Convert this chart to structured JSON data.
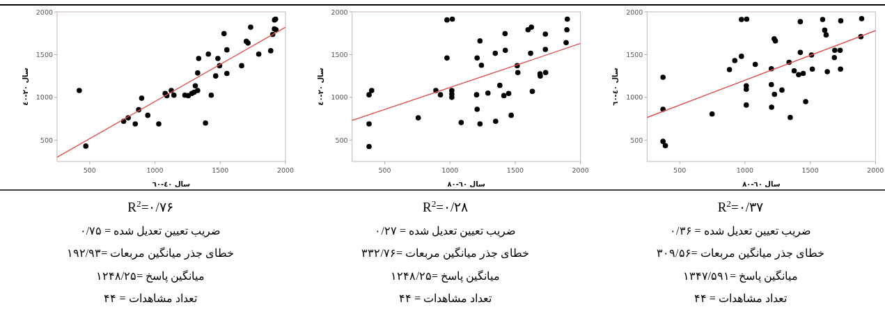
{
  "chart_data": [
    {
      "type": "scatter",
      "xlabel": "سال ٤٠-٦٠",
      "ylabel": "سال ٢٠-٤٠",
      "xlim": [
        250,
        2000
      ],
      "ylim": [
        250,
        2000
      ],
      "xticks": [
        500,
        1000,
        1500,
        2000
      ],
      "yticks": [
        500,
        1000,
        1500,
        2000
      ],
      "grid": false,
      "series": [
        {
          "marker": "circle",
          "color": "#000000",
          "x": [
            420,
            470,
            760,
            795,
            849,
            875,
            898,
            945,
            1029,
            1078,
            1091,
            1125,
            1145,
            1229,
            1255,
            1282,
            1300,
            1309,
            1327,
            1327,
            1335,
            1387,
            1409,
            1431,
            1465,
            1482,
            1495,
            1529,
            1551,
            1551,
            1664,
            1700,
            1713,
            1733,
            1795,
            1887,
            1902,
            1915,
            1927,
            1916,
            1924
          ],
          "values": [
            1080,
            430,
            720,
            760,
            690,
            855,
            990,
            790,
            690,
            1045,
            1020,
            1080,
            1025,
            1025,
            1020,
            1045,
            1060,
            1135,
            1080,
            1285,
            1455,
            700,
            1505,
            1025,
            1250,
            1455,
            1370,
            1745,
            1555,
            1280,
            1370,
            1655,
            1635,
            1820,
            1505,
            1545,
            1735,
            1800,
            1790,
            1905,
            1915
          ]
        },
        {
          "type": "line",
          "color": "#e05050",
          "x": [
            250,
            2000
          ],
          "values": [
            300,
            1820
          ]
        }
      ],
      "annotations": [
        "R$^{2}$=۰/۷۶",
        "ضریب تعیین تعدیل شده = ۰/۷۵",
        "خطای جذر میانگین مربعات =۱۹۲/۹۳",
        "میانگین پاسخ =۱۲۴۸/۲۵",
        "تعداد مشاهدات = ۴۴"
      ]
    },
    {
      "type": "scatter",
      "xlabel": "سال ٦٠-٨٠",
      "ylabel": "سال ٢٠-٤٠",
      "xlim": [
        250,
        2000
      ],
      "ylim": [
        250,
        2000
      ],
      "xticks": [
        500,
        1000,
        1500,
        2000
      ],
      "yticks": [
        500,
        1000,
        1500,
        2000
      ],
      "grid": false,
      "series": [
        {
          "marker": "circle",
          "color": "#000000",
          "x": [
            380,
            380,
            380,
            400,
            757,
            892,
            927,
            977,
            977,
            1018,
            1014,
            1014,
            1014,
            1086,
            1204,
            1208,
            1208,
            1230,
            1230,
            1241,
            1291,
            1347,
            1350,
            1382,
            1413,
            1422,
            1424,
            1450,
            1469,
            1515,
            1520,
            1598,
            1624,
            1618,
            1631,
            1690,
            1692,
            1731,
            1731,
            1733,
            1890,
            1896,
            1899
          ],
          "values": [
            425,
            690,
            1030,
            1080,
            760,
            1080,
            1030,
            1460,
            1905,
            1915,
            1080,
            1040,
            1000,
            705,
            1030,
            860,
            1460,
            690,
            1660,
            1375,
            1050,
            1515,
            720,
            1140,
            1020,
            1745,
            1550,
            1045,
            790,
            1370,
            1290,
            1790,
            1820,
            1515,
            1070,
            1275,
            1250,
            1740,
            1560,
            1290,
            1640,
            1790,
            1915
          ]
        },
        {
          "type": "line",
          "color": "#e05050",
          "x": [
            250,
            2000
          ],
          "values": [
            730,
            1630
          ]
        }
      ],
      "annotations": [
        "R$^{2}$=۰/۲۸",
        "ضریب تعیین تعدیل شده = ۰/۲۷",
        "خطای جذر میانگین مربعات =۳۳۲/۷۶",
        "میانگین پاسخ =۱۲۴۸/۲۵",
        "تعداد مشاهدات = ۴۴"
      ]
    },
    {
      "type": "scatter",
      "xlabel": "سال ٦٠-٨٠",
      "ylabel": "سال ٤٠-٦٠",
      "xlim": [
        250,
        2000
      ],
      "ylim": [
        250,
        2000
      ],
      "xticks": [
        500,
        1000,
        1500,
        2000
      ],
      "yticks": [
        500,
        1000,
        1500,
        2000
      ],
      "grid": false,
      "series": [
        {
          "marker": "circle",
          "color": "#000000",
          "x": [
            372,
            372,
            372,
            390,
            748,
            881,
            922,
            973,
            973,
            1013,
            1010,
            1010,
            1010,
            1079,
            1202,
            1202,
            1204,
            1224,
            1233,
            1226,
            1283,
            1338,
            1347,
            1377,
            1411,
            1424,
            1424,
            1446,
            1465,
            1510,
            1516,
            1595,
            1611,
            1622,
            1631,
            1685,
            1688,
            1729,
            1732,
            1734,
            1888,
            1894
          ],
          "values": [
            1235,
            860,
            485,
            435,
            805,
            1325,
            1430,
            1480,
            1910,
            1915,
            1135,
            1095,
            910,
            1385,
            1335,
            1150,
            885,
            1685,
            1660,
            1035,
            1085,
            1410,
            765,
            1310,
            1265,
            1525,
            1885,
            1280,
            950,
            1495,
            1330,
            1910,
            1785,
            1730,
            1300,
            1465,
            1550,
            1550,
            1330,
            1895,
            1710,
            1920
          ]
        },
        {
          "type": "line",
          "color": "#e05050",
          "x": [
            250,
            2000
          ],
          "values": [
            765,
            1780
          ]
        }
      ],
      "annotations": [
        "R$^{2}$=۰/۳۷",
        "ضریب تعیین تعدیل شده = ۰/۳۶",
        "خطای جذر میانگین مربعات =۳۰۹/۵۶",
        "میانگین پاسخ =۱۳۴۷/۵۹۱",
        "تعداد مشاهدات = ۴۴"
      ]
    }
  ]
}
